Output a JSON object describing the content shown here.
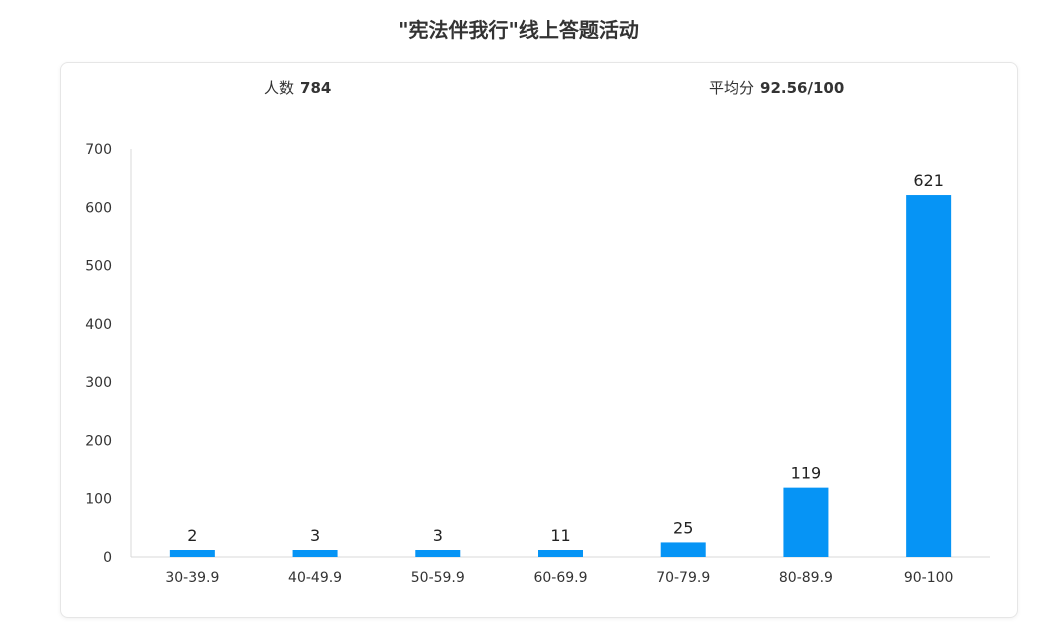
{
  "title": "\"宪法伴我行\"线上答题活动",
  "stats": {
    "count_label": "人数",
    "count_value": "784",
    "avg_label": "平均分",
    "avg_value": "92.56/100"
  },
  "colors": {
    "bar": "#0694f5",
    "axis": "#d9d9d9",
    "text": "#333333"
  },
  "chart_data": {
    "type": "bar",
    "categories": [
      "30-39.9",
      "40-49.9",
      "50-59.9",
      "60-69.9",
      "70-79.9",
      "80-89.9",
      "90-100"
    ],
    "values": [
      2,
      3,
      3,
      11,
      25,
      119,
      621
    ],
    "display_labels": [
      "2",
      "3",
      "3",
      "11",
      "25",
      "119",
      "621"
    ],
    "yticks": [
      0,
      100,
      200,
      300,
      400,
      500,
      600,
      700
    ],
    "ylim": [
      0,
      700
    ],
    "grid": false,
    "legend": false,
    "xlabel": "",
    "ylabel": ""
  }
}
